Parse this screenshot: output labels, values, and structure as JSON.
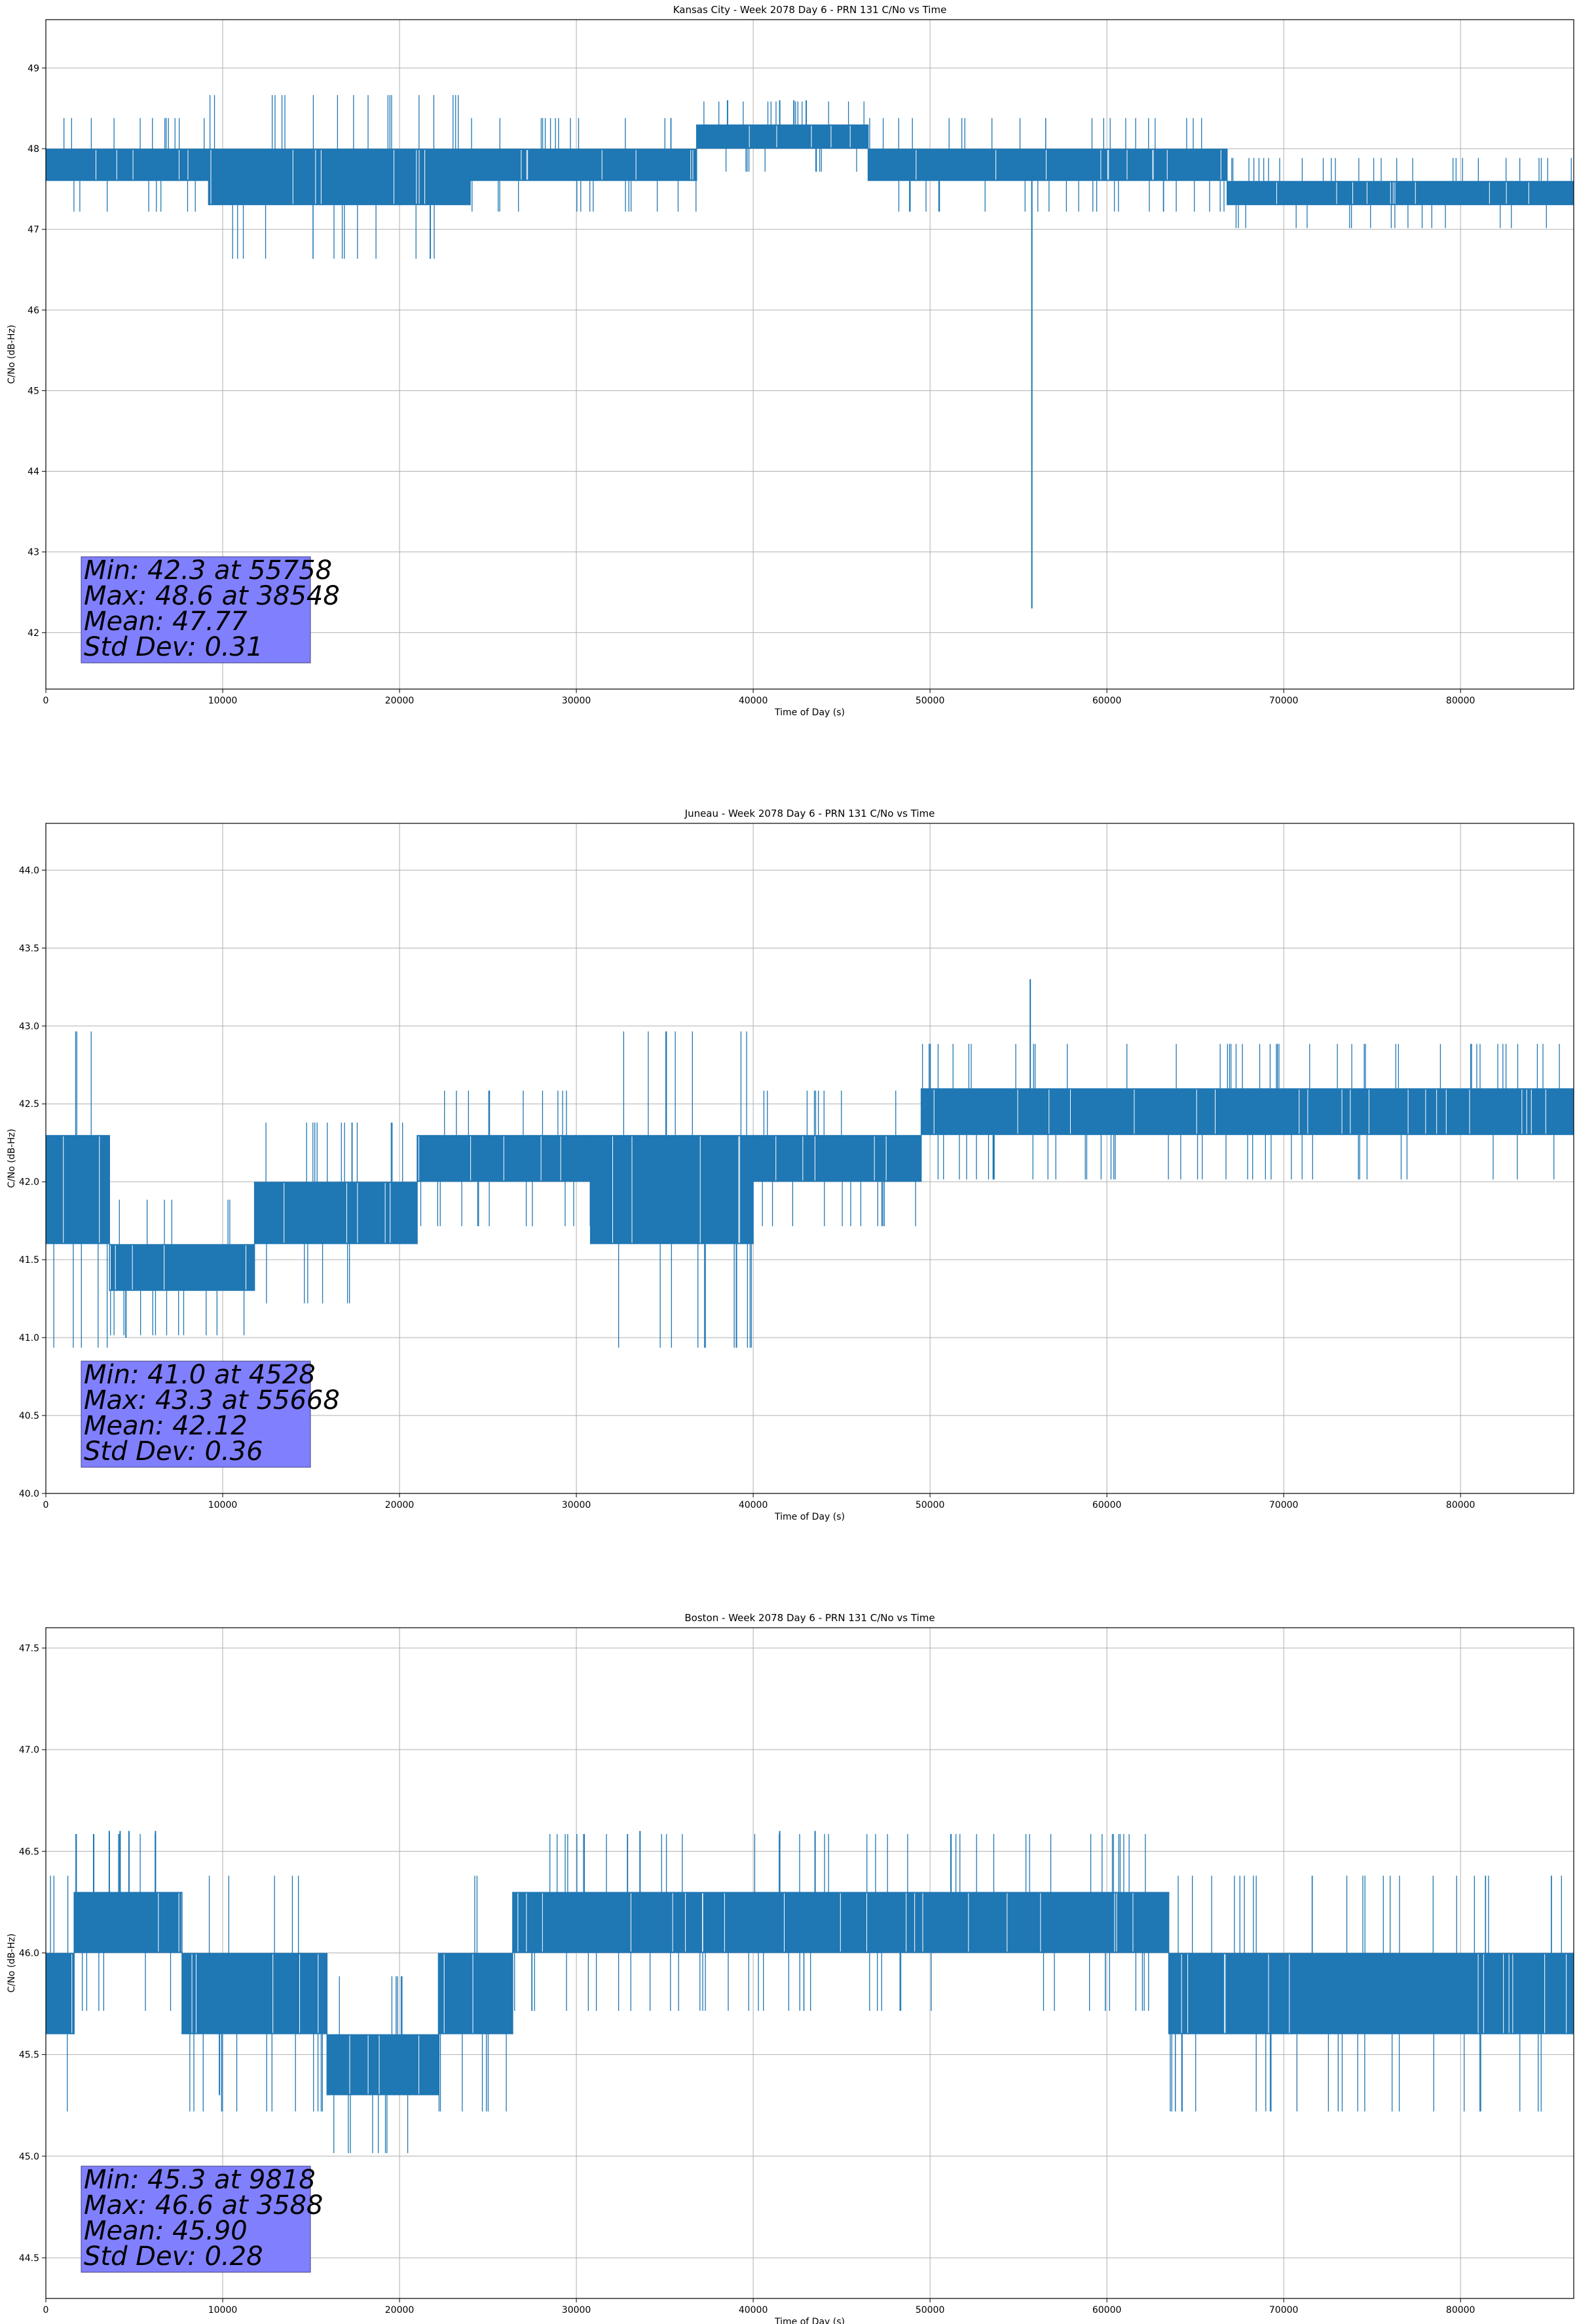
{
  "series_color": "#1f77b4",
  "stats_box_color": "#8080ff",
  "chart_data": [
    {
      "type": "line",
      "title": "Kansas City - Week 2078 Day 6 - PRN 131 C/No vs Time",
      "xlabel": "Time of Day (s)",
      "ylabel": "C/No (dB-Hz)",
      "xlim": [
        0,
        86400
      ],
      "ylim": [
        41.3,
        49.6
      ],
      "xticks": [
        0,
        10000,
        20000,
        30000,
        40000,
        50000,
        60000,
        70000,
        80000
      ],
      "yticks": [
        42,
        43,
        44,
        45,
        46,
        47,
        48,
        49
      ],
      "ytick_labels": [
        "42",
        "43",
        "44",
        "45",
        "46",
        "47",
        "48",
        "49"
      ],
      "grid": true,
      "segments": [
        {
          "x0": 0,
          "x1": 9200,
          "lo": 47.6,
          "hi": 48.0
        },
        {
          "x0": 9200,
          "x1": 24000,
          "lo": 47.3,
          "hi": 48.0
        },
        {
          "x0": 24000,
          "x1": 36800,
          "lo": 47.6,
          "hi": 48.0
        },
        {
          "x0": 36800,
          "x1": 46500,
          "lo": 48.0,
          "hi": 48.3
        },
        {
          "x0": 46500,
          "x1": 66800,
          "lo": 47.6,
          "hi": 48.0
        },
        {
          "x0": 66800,
          "x1": 86400,
          "lo": 47.3,
          "hi": 47.6
        }
      ],
      "spikes": [
        {
          "x": 38548,
          "y": 48.6
        },
        {
          "x": 41500,
          "y": 48.6
        },
        {
          "x": 42300,
          "y": 48.6
        },
        {
          "x": 43000,
          "y": 48.6
        },
        {
          "x": 55758,
          "y": 42.3
        }
      ],
      "stats": {
        "min": "Min: 42.3 at 55758",
        "max": "Max: 48.6 at 38548",
        "mean": "Mean: 47.77",
        "std": "Std Dev: 0.31"
      }
    },
    {
      "type": "line",
      "title": "Juneau - Week 2078 Day 6 - PRN 131 C/No vs Time",
      "xlabel": "Time of Day (s)",
      "ylabel": "C/No (dB-Hz)",
      "xlim": [
        0,
        86400
      ],
      "ylim": [
        40.0,
        44.3
      ],
      "xticks": [
        0,
        10000,
        20000,
        30000,
        40000,
        50000,
        60000,
        70000,
        80000
      ],
      "yticks": [
        40.0,
        40.5,
        41.0,
        41.5,
        42.0,
        42.5,
        43.0,
        43.5,
        44.0
      ],
      "ytick_labels": [
        "40.0",
        "40.5",
        "41.0",
        "41.5",
        "42.0",
        "42.5",
        "43.0",
        "43.5",
        "44.0"
      ],
      "grid": true,
      "segments": [
        {
          "x0": 0,
          "x1": 3600,
          "lo": 41.6,
          "hi": 42.3
        },
        {
          "x0": 3600,
          "x1": 11800,
          "lo": 41.3,
          "hi": 41.6
        },
        {
          "x0": 11800,
          "x1": 21000,
          "lo": 41.6,
          "hi": 42.0
        },
        {
          "x0": 21000,
          "x1": 30800,
          "lo": 42.0,
          "hi": 42.3
        },
        {
          "x0": 30800,
          "x1": 40000,
          "lo": 41.6,
          "hi": 42.3
        },
        {
          "x0": 40000,
          "x1": 49500,
          "lo": 42.0,
          "hi": 42.3
        },
        {
          "x0": 49500,
          "x1": 86400,
          "lo": 42.3,
          "hi": 42.6
        }
      ],
      "spikes": [
        {
          "x": 4528,
          "y": 41.0
        },
        {
          "x": 55668,
          "y": 43.3
        }
      ],
      "stats": {
        "min": "Min: 41.0 at 4528",
        "max": "Max: 43.3 at 55668",
        "mean": "Mean: 42.12",
        "std": "Std Dev: 0.36"
      }
    },
    {
      "type": "line",
      "title": "Boston - Week 2078 Day 6 - PRN 131 C/No vs Time",
      "xlabel": "Time of Day (s)",
      "ylabel": "C/No (dB-Hz)",
      "xlim": [
        0,
        86400
      ],
      "ylim": [
        44.3,
        47.6
      ],
      "xticks": [
        0,
        10000,
        20000,
        30000,
        40000,
        50000,
        60000,
        70000,
        80000
      ],
      "yticks": [
        44.5,
        45.0,
        45.5,
        46.0,
        46.5,
        47.0,
        47.5
      ],
      "ytick_labels": [
        "44.5",
        "45.0",
        "45.5",
        "46.0",
        "46.5",
        "47.0",
        "47.5"
      ],
      "grid": true,
      "segments": [
        {
          "x0": 0,
          "x1": 1600,
          "lo": 45.6,
          "hi": 46.0
        },
        {
          "x0": 1600,
          "x1": 7700,
          "lo": 46.0,
          "hi": 46.3
        },
        {
          "x0": 7700,
          "x1": 15900,
          "lo": 45.6,
          "hi": 46.0
        },
        {
          "x0": 15900,
          "x1": 22200,
          "lo": 45.3,
          "hi": 45.6
        },
        {
          "x0": 22200,
          "x1": 26400,
          "lo": 45.6,
          "hi": 46.0
        },
        {
          "x0": 26400,
          "x1": 63500,
          "lo": 46.0,
          "hi": 46.3
        },
        {
          "x0": 63500,
          "x1": 86400,
          "lo": 45.6,
          "hi": 46.0
        }
      ],
      "spikes": [
        {
          "x": 3588,
          "y": 46.6
        },
        {
          "x": 4200,
          "y": 46.6
        },
        {
          "x": 4700,
          "y": 46.6
        },
        {
          "x": 6200,
          "y": 46.6
        },
        {
          "x": 9818,
          "y": 45.3
        },
        {
          "x": 33600,
          "y": 46.6
        },
        {
          "x": 41500,
          "y": 46.6
        },
        {
          "x": 43500,
          "y": 46.6
        }
      ],
      "stats": {
        "min": "Min: 45.3 at 9818",
        "max": "Max: 46.6 at 3588",
        "mean": "Mean: 45.90",
        "std": "Std Dev: 0.28"
      }
    }
  ]
}
